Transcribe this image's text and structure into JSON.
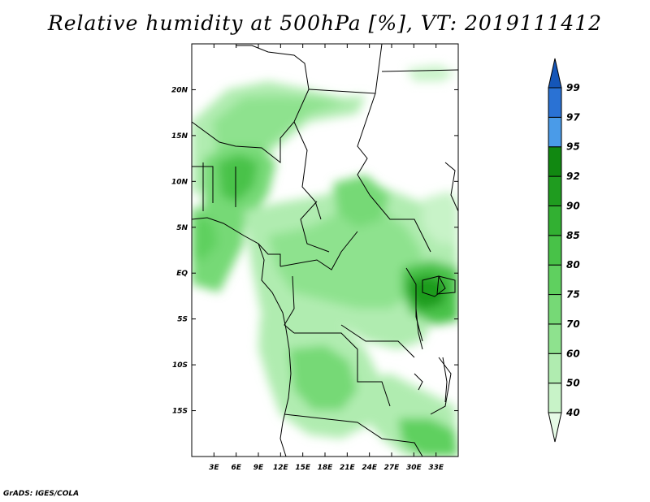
{
  "title": "Relative humidity at 500hPa [%], VT: 2019111412",
  "credit": "GrADS: IGES/COLA",
  "map": {
    "lon_range": [
      0,
      36
    ],
    "lat_range": [
      -20,
      25
    ],
    "lon_ticks": [
      {
        "value": 3,
        "label": "3E"
      },
      {
        "value": 6,
        "label": "6E"
      },
      {
        "value": 9,
        "label": "9E"
      },
      {
        "value": 12,
        "label": "12E"
      },
      {
        "value": 15,
        "label": "15E"
      },
      {
        "value": 18,
        "label": "18E"
      },
      {
        "value": 21,
        "label": "21E"
      },
      {
        "value": 24,
        "label": "24E"
      },
      {
        "value": 27,
        "label": "27E"
      },
      {
        "value": 30,
        "label": "30E"
      },
      {
        "value": 33,
        "label": "33E"
      }
    ],
    "lat_ticks": [
      {
        "value": 20,
        "label": "20N"
      },
      {
        "value": 15,
        "label": "15N"
      },
      {
        "value": 10,
        "label": "10N"
      },
      {
        "value": 5,
        "label": "5N"
      },
      {
        "value": 0,
        "label": "EQ"
      },
      {
        "value": -5,
        "label": "5S"
      },
      {
        "value": -10,
        "label": "10S"
      },
      {
        "value": -15,
        "label": "15S"
      }
    ]
  },
  "colorbar": {
    "levels": [
      "40",
      "50",
      "60",
      "70",
      "75",
      "80",
      "85",
      "90",
      "92",
      "95",
      "97",
      "99"
    ],
    "colors": [
      "#e6fbe6",
      "#c8f3c8",
      "#b0ecb0",
      "#8ee28e",
      "#76d976",
      "#5fd05f",
      "#48c248",
      "#32b032",
      "#1f9c1f",
      "#118811",
      "#4a9be8",
      "#2a72d4",
      "#1556b8"
    ]
  },
  "colors": {
    "ocean": "#ffffff",
    "land": "#ffffff",
    "border": "#000000"
  }
}
